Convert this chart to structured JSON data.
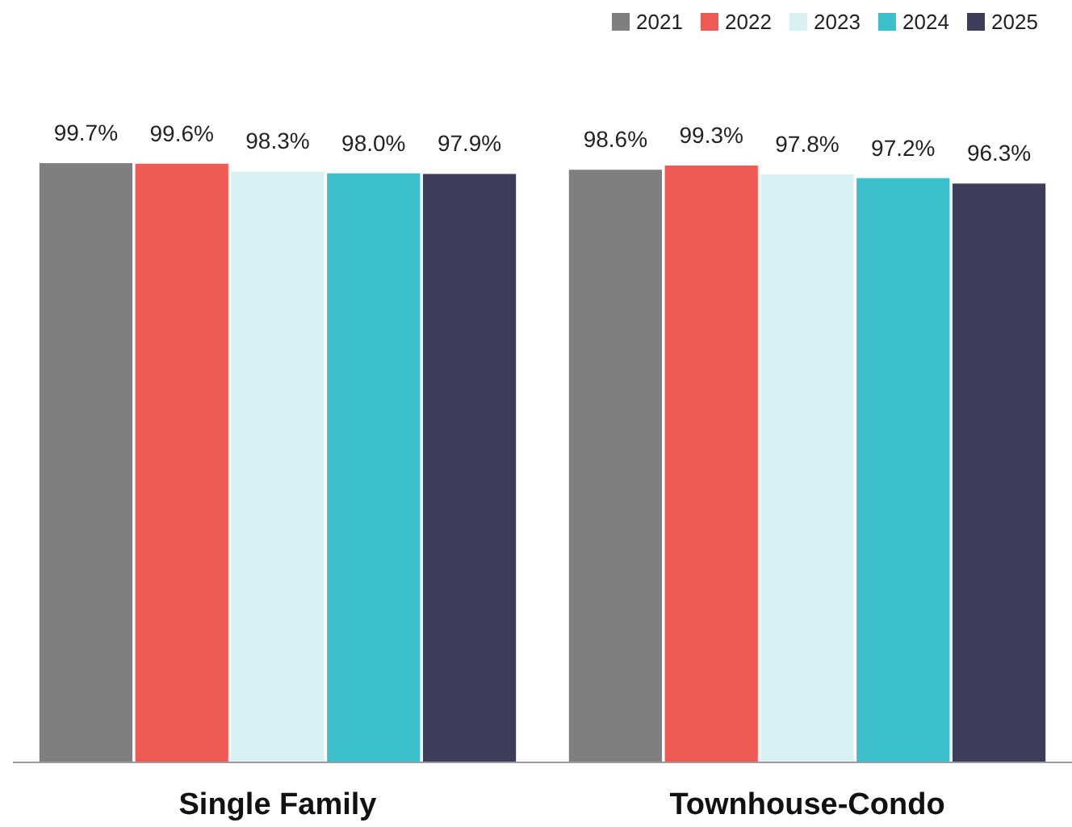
{
  "chart_data": {
    "type": "bar",
    "categories": [
      "Single Family",
      "Townhouse-Condo"
    ],
    "legend": "top right",
    "series": [
      {
        "name": "2021",
        "color": "#7f7f7f",
        "values": [
          99.7,
          98.6
        ],
        "value_labels": [
          "99.7%",
          "98.6%"
        ]
      },
      {
        "name": "2022",
        "color": "#f05a55",
        "values": [
          99.6,
          99.3
        ],
        "value_labels": [
          "99.6%",
          "99.3%"
        ]
      },
      {
        "name": "2023",
        "color": "#d9f1f5",
        "values": [
          98.3,
          97.8
        ],
        "value_labels": [
          "98.3%",
          "97.8%"
        ]
      },
      {
        "name": "2024",
        "color": "#3bbfca",
        "values": [
          98.0,
          97.2
        ],
        "value_labels": [
          "98.0%",
          "97.2%"
        ]
      },
      {
        "name": "2025",
        "color": "#3d3d5a",
        "values": [
          97.9,
          96.3
        ],
        "value_labels": [
          "97.9%",
          "96.3%"
        ]
      }
    ]
  }
}
